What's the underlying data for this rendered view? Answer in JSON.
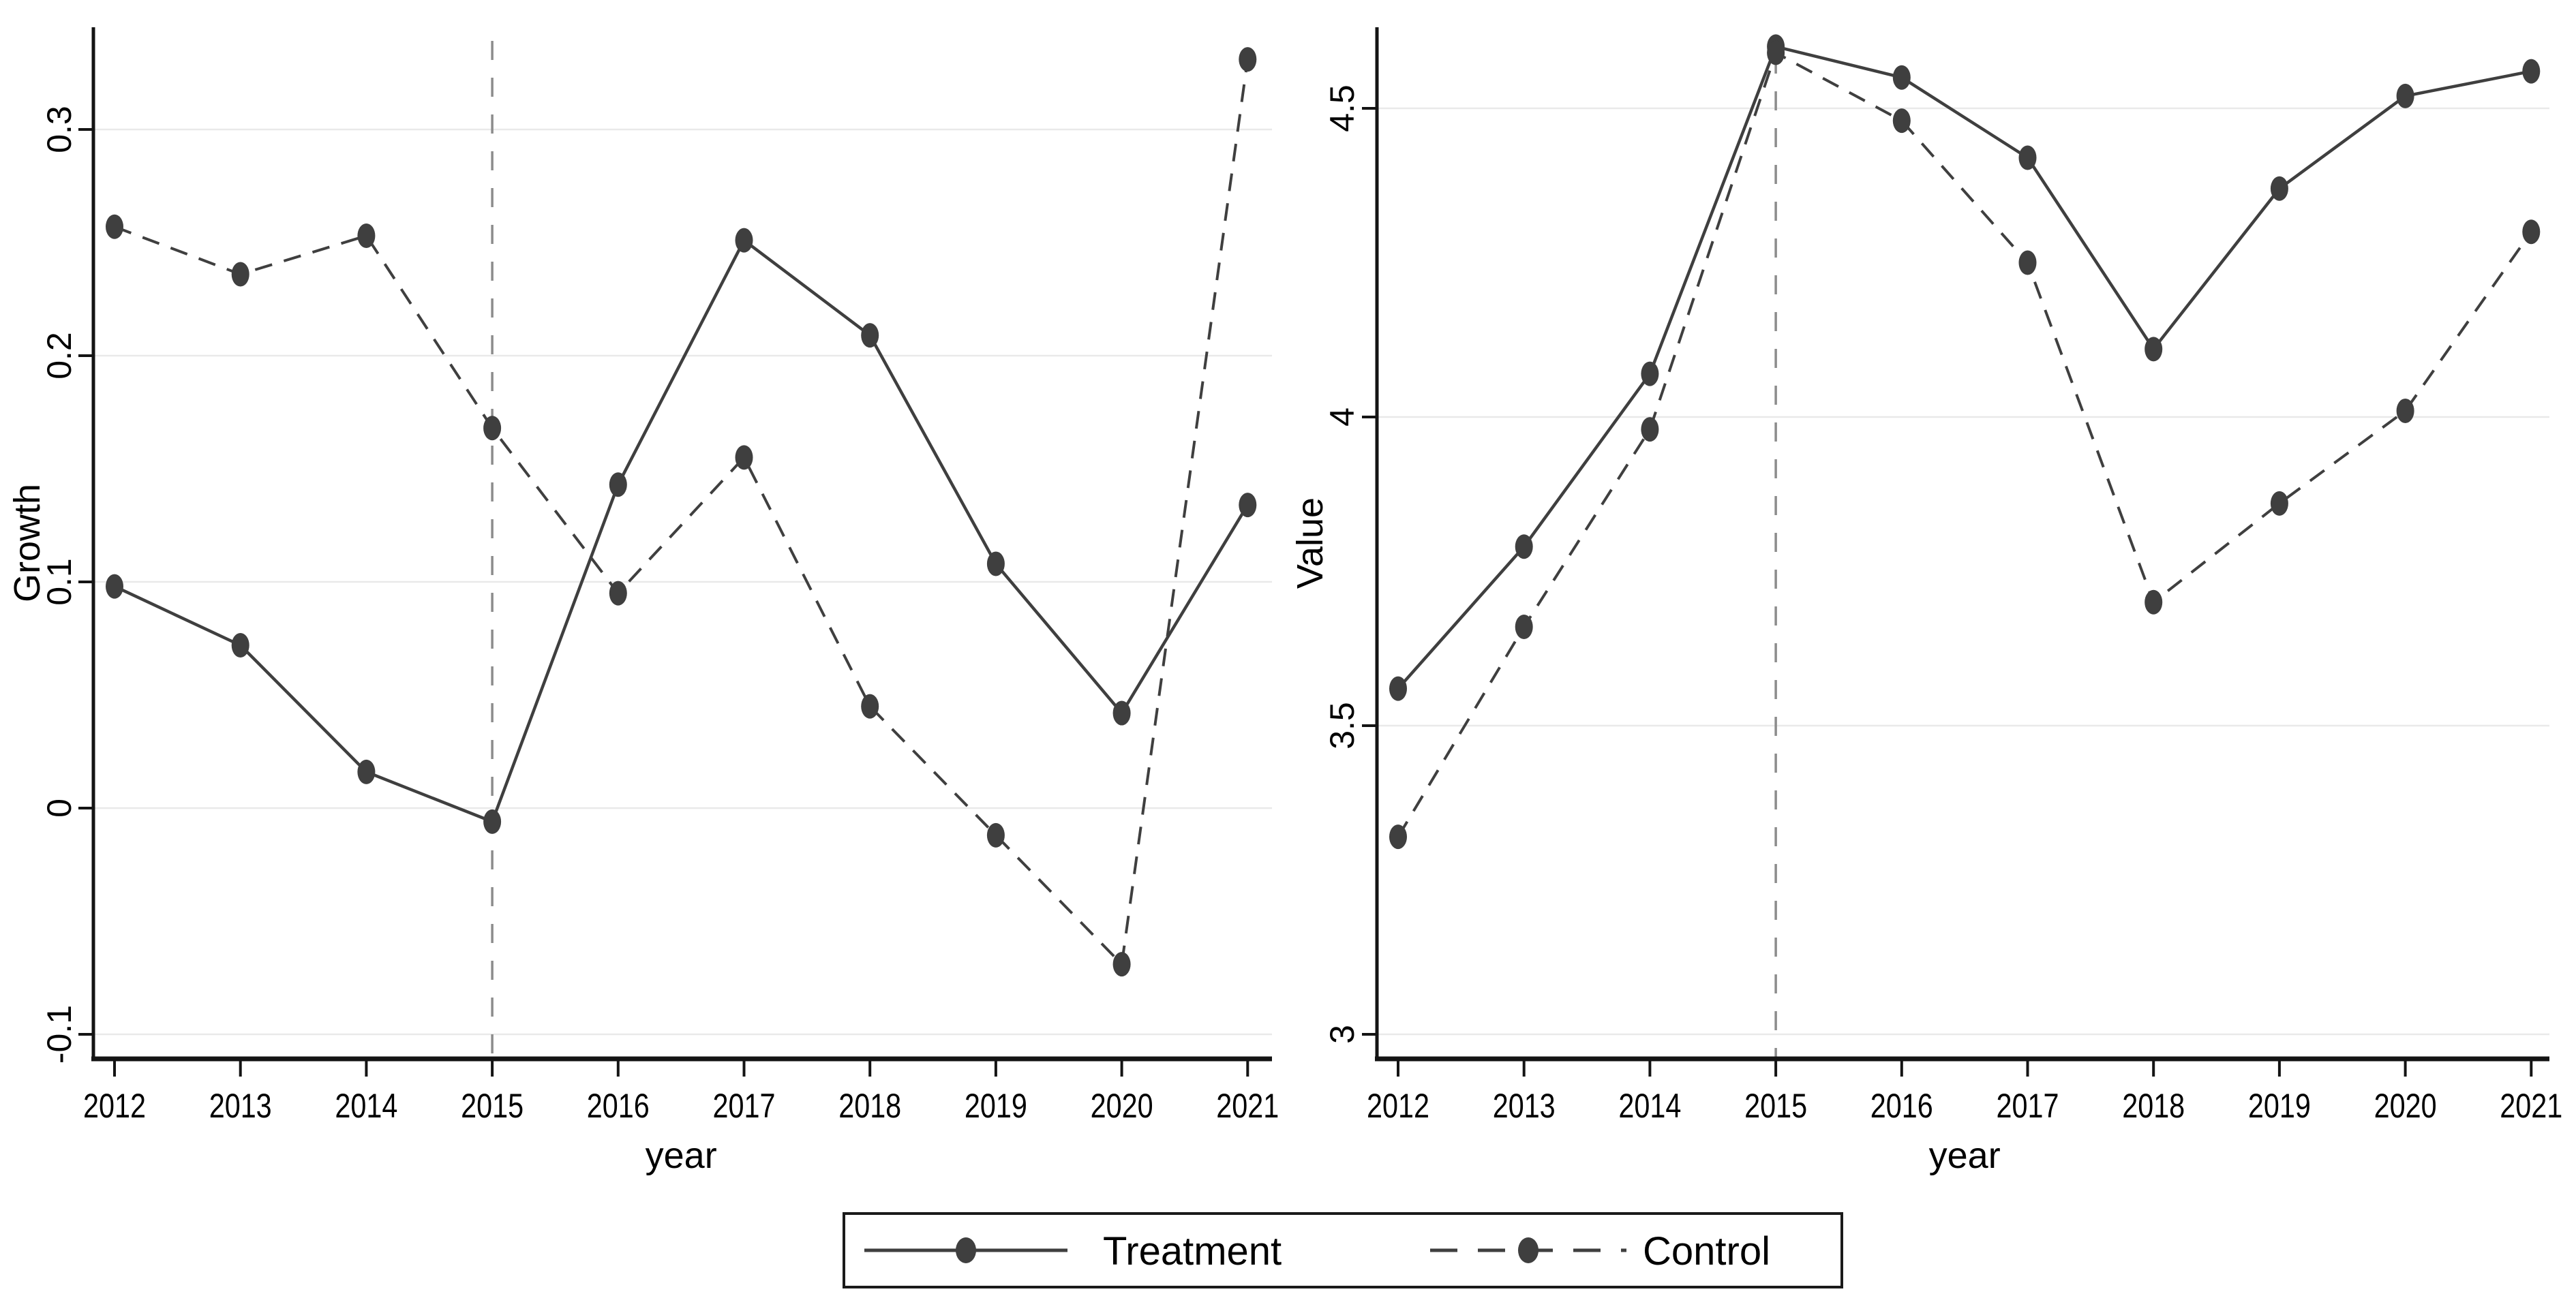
{
  "figure": {
    "background": "#ffffff",
    "colors": {
      "series": "#3f3f3f",
      "marker": "#3f3f3f",
      "grid": "#e9e9e9",
      "axis": "#141414",
      "reference_line": "#8c8c8c",
      "legend_border": "#1a1a1a",
      "text": "#000000"
    },
    "legend": {
      "position": "bottom-center",
      "items": [
        {
          "label": "Treatment",
          "line_style": "solid",
          "marker": "circle"
        },
        {
          "label": "Control",
          "line_style": "dashed",
          "marker": "circle"
        }
      ]
    },
    "chart_data": [
      {
        "type": "line",
        "panel": "growth",
        "title": "",
        "xlabel": "year",
        "ylabel": "Growth",
        "x": [
          2012,
          2013,
          2014,
          2015,
          2016,
          2017,
          2018,
          2019,
          2020,
          2021
        ],
        "xtick_labels": [
          "2012",
          "2013",
          "2014",
          "2015",
          "2016",
          "2017",
          "2018",
          "2019",
          "2020",
          "2021"
        ],
        "yticks": [
          0.3,
          0.2,
          0.1,
          0,
          -0.1
        ],
        "ytick_labels": [
          "0.3",
          "0.2",
          "0.1",
          "0",
          "-0.1"
        ],
        "ylim": [
          -0.11,
          0.345
        ],
        "grid": true,
        "reference_line_x": 2015,
        "series": [
          {
            "name": "Treatment",
            "style": "solid",
            "values": [
              0.098,
              0.072,
              0.016,
              -0.006,
              0.143,
              0.251,
              0.209,
              0.108,
              0.042,
              0.134
            ]
          },
          {
            "name": "Control",
            "style": "dashed",
            "values": [
              0.257,
              0.236,
              0.253,
              0.168,
              0.095,
              0.155,
              0.045,
              -0.012,
              -0.069,
              0.331
            ]
          }
        ]
      },
      {
        "type": "line",
        "panel": "value",
        "title": "",
        "xlabel": "year",
        "ylabel": "Value",
        "x": [
          2012,
          2013,
          2014,
          2015,
          2016,
          2017,
          2018,
          2019,
          2020,
          2021
        ],
        "xtick_labels": [
          "2012",
          "2013",
          "2014",
          "2015",
          "2016",
          "2017",
          "2018",
          "2019",
          "2020",
          "2021"
        ],
        "yticks": [
          4.5,
          4,
          3.5,
          3
        ],
        "ytick_labels": [
          "4.5",
          "4",
          "3.5",
          "3"
        ],
        "ylim": [
          2.94,
          4.63
        ],
        "grid": true,
        "reference_line_x": 2015,
        "series": [
          {
            "name": "Treatment",
            "style": "solid",
            "values": [
              3.56,
              3.79,
              4.07,
              4.6,
              4.55,
              4.42,
              4.11,
              4.37,
              4.52,
              4.56
            ]
          },
          {
            "name": "Control",
            "style": "dashed",
            "values": [
              3.32,
              3.66,
              3.98,
              4.59,
              4.48,
              4.25,
              3.7,
              3.86,
              4.01,
              4.3
            ]
          }
        ]
      }
    ]
  }
}
